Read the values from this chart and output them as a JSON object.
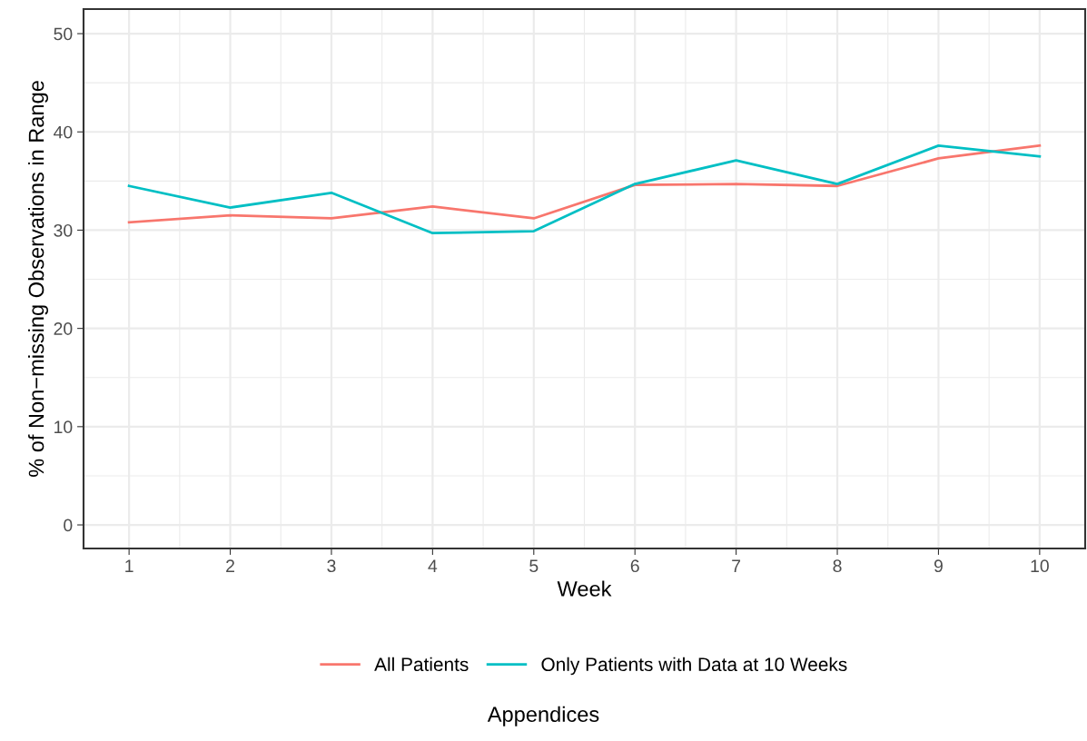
{
  "chart_data": {
    "type": "line",
    "xlabel": "Week",
    "ylabel": "% of Non−missing Observations in Range",
    "x": [
      1,
      2,
      3,
      4,
      5,
      6,
      7,
      8,
      9,
      10
    ],
    "series": [
      {
        "name": "All Patients",
        "color": "#f8766d",
        "values": [
          30.8,
          31.5,
          31.2,
          32.4,
          31.2,
          34.6,
          34.7,
          34.5,
          37.3,
          38.6
        ]
      },
      {
        "name": "Only Patients with Data at 10 Weeks",
        "color": "#00bfc4",
        "values": [
          34.5,
          32.3,
          33.8,
          29.7,
          29.9,
          34.7,
          37.1,
          34.7,
          38.6,
          37.5
        ]
      }
    ],
    "xlim": [
      0.55,
      10.45
    ],
    "xticks": [
      1,
      2,
      3,
      4,
      5,
      6,
      7,
      8,
      9,
      10
    ],
    "ylim": [
      -2.4,
      52.5
    ],
    "yticks": [
      0,
      10,
      20,
      30,
      40,
      50
    ],
    "grid": true,
    "legend": "bottom",
    "marker": "none",
    "line_style": "solid",
    "annotations": [
      "Appendices"
    ]
  }
}
